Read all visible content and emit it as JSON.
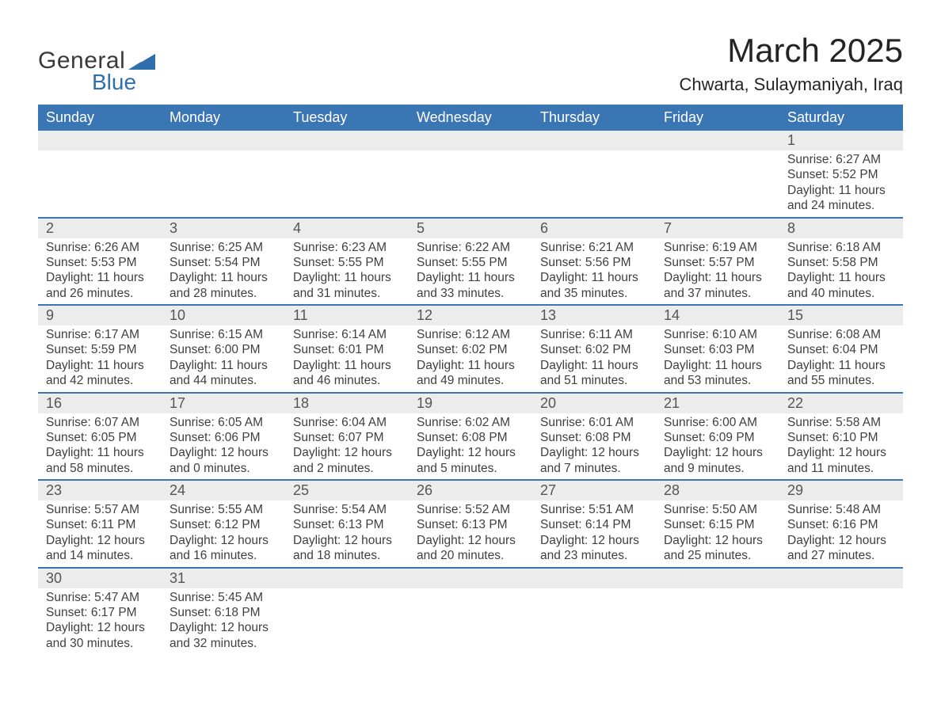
{
  "logo": {
    "text_general": "General",
    "text_blue": "Blue",
    "shape_color": "#2f6fae"
  },
  "header": {
    "month_title": "March 2025",
    "location": "Chwarta, Sulaymaniyah, Iraq"
  },
  "colors": {
    "header_bg": "#3b76b4",
    "header_text": "#ffffff",
    "daynum_bg": "#ececec",
    "border": "#3b76b4",
    "body_text": "#3f3f3f",
    "title_text": "#242424"
  },
  "day_headers": [
    "Sunday",
    "Monday",
    "Tuesday",
    "Wednesday",
    "Thursday",
    "Friday",
    "Saturday"
  ],
  "weeks": [
    [
      null,
      null,
      null,
      null,
      null,
      null,
      {
        "n": "1",
        "sunrise": "Sunrise: 6:27 AM",
        "sunset": "Sunset: 5:52 PM",
        "dl1": "Daylight: 11 hours",
        "dl2": "and 24 minutes."
      }
    ],
    [
      {
        "n": "2",
        "sunrise": "Sunrise: 6:26 AM",
        "sunset": "Sunset: 5:53 PM",
        "dl1": "Daylight: 11 hours",
        "dl2": "and 26 minutes."
      },
      {
        "n": "3",
        "sunrise": "Sunrise: 6:25 AM",
        "sunset": "Sunset: 5:54 PM",
        "dl1": "Daylight: 11 hours",
        "dl2": "and 28 minutes."
      },
      {
        "n": "4",
        "sunrise": "Sunrise: 6:23 AM",
        "sunset": "Sunset: 5:55 PM",
        "dl1": "Daylight: 11 hours",
        "dl2": "and 31 minutes."
      },
      {
        "n": "5",
        "sunrise": "Sunrise: 6:22 AM",
        "sunset": "Sunset: 5:55 PM",
        "dl1": "Daylight: 11 hours",
        "dl2": "and 33 minutes."
      },
      {
        "n": "6",
        "sunrise": "Sunrise: 6:21 AM",
        "sunset": "Sunset: 5:56 PM",
        "dl1": "Daylight: 11 hours",
        "dl2": "and 35 minutes."
      },
      {
        "n": "7",
        "sunrise": "Sunrise: 6:19 AM",
        "sunset": "Sunset: 5:57 PM",
        "dl1": "Daylight: 11 hours",
        "dl2": "and 37 minutes."
      },
      {
        "n": "8",
        "sunrise": "Sunrise: 6:18 AM",
        "sunset": "Sunset: 5:58 PM",
        "dl1": "Daylight: 11 hours",
        "dl2": "and 40 minutes."
      }
    ],
    [
      {
        "n": "9",
        "sunrise": "Sunrise: 6:17 AM",
        "sunset": "Sunset: 5:59 PM",
        "dl1": "Daylight: 11 hours",
        "dl2": "and 42 minutes."
      },
      {
        "n": "10",
        "sunrise": "Sunrise: 6:15 AM",
        "sunset": "Sunset: 6:00 PM",
        "dl1": "Daylight: 11 hours",
        "dl2": "and 44 minutes."
      },
      {
        "n": "11",
        "sunrise": "Sunrise: 6:14 AM",
        "sunset": "Sunset: 6:01 PM",
        "dl1": "Daylight: 11 hours",
        "dl2": "and 46 minutes."
      },
      {
        "n": "12",
        "sunrise": "Sunrise: 6:12 AM",
        "sunset": "Sunset: 6:02 PM",
        "dl1": "Daylight: 11 hours",
        "dl2": "and 49 minutes."
      },
      {
        "n": "13",
        "sunrise": "Sunrise: 6:11 AM",
        "sunset": "Sunset: 6:02 PM",
        "dl1": "Daylight: 11 hours",
        "dl2": "and 51 minutes."
      },
      {
        "n": "14",
        "sunrise": "Sunrise: 6:10 AM",
        "sunset": "Sunset: 6:03 PM",
        "dl1": "Daylight: 11 hours",
        "dl2": "and 53 minutes."
      },
      {
        "n": "15",
        "sunrise": "Sunrise: 6:08 AM",
        "sunset": "Sunset: 6:04 PM",
        "dl1": "Daylight: 11 hours",
        "dl2": "and 55 minutes."
      }
    ],
    [
      {
        "n": "16",
        "sunrise": "Sunrise: 6:07 AM",
        "sunset": "Sunset: 6:05 PM",
        "dl1": "Daylight: 11 hours",
        "dl2": "and 58 minutes."
      },
      {
        "n": "17",
        "sunrise": "Sunrise: 6:05 AM",
        "sunset": "Sunset: 6:06 PM",
        "dl1": "Daylight: 12 hours",
        "dl2": "and 0 minutes."
      },
      {
        "n": "18",
        "sunrise": "Sunrise: 6:04 AM",
        "sunset": "Sunset: 6:07 PM",
        "dl1": "Daylight: 12 hours",
        "dl2": "and 2 minutes."
      },
      {
        "n": "19",
        "sunrise": "Sunrise: 6:02 AM",
        "sunset": "Sunset: 6:08 PM",
        "dl1": "Daylight: 12 hours",
        "dl2": "and 5 minutes."
      },
      {
        "n": "20",
        "sunrise": "Sunrise: 6:01 AM",
        "sunset": "Sunset: 6:08 PM",
        "dl1": "Daylight: 12 hours",
        "dl2": "and 7 minutes."
      },
      {
        "n": "21",
        "sunrise": "Sunrise: 6:00 AM",
        "sunset": "Sunset: 6:09 PM",
        "dl1": "Daylight: 12 hours",
        "dl2": "and 9 minutes."
      },
      {
        "n": "22",
        "sunrise": "Sunrise: 5:58 AM",
        "sunset": "Sunset: 6:10 PM",
        "dl1": "Daylight: 12 hours",
        "dl2": "and 11 minutes."
      }
    ],
    [
      {
        "n": "23",
        "sunrise": "Sunrise: 5:57 AM",
        "sunset": "Sunset: 6:11 PM",
        "dl1": "Daylight: 12 hours",
        "dl2": "and 14 minutes."
      },
      {
        "n": "24",
        "sunrise": "Sunrise: 5:55 AM",
        "sunset": "Sunset: 6:12 PM",
        "dl1": "Daylight: 12 hours",
        "dl2": "and 16 minutes."
      },
      {
        "n": "25",
        "sunrise": "Sunrise: 5:54 AM",
        "sunset": "Sunset: 6:13 PM",
        "dl1": "Daylight: 12 hours",
        "dl2": "and 18 minutes."
      },
      {
        "n": "26",
        "sunrise": "Sunrise: 5:52 AM",
        "sunset": "Sunset: 6:13 PM",
        "dl1": "Daylight: 12 hours",
        "dl2": "and 20 minutes."
      },
      {
        "n": "27",
        "sunrise": "Sunrise: 5:51 AM",
        "sunset": "Sunset: 6:14 PM",
        "dl1": "Daylight: 12 hours",
        "dl2": "and 23 minutes."
      },
      {
        "n": "28",
        "sunrise": "Sunrise: 5:50 AM",
        "sunset": "Sunset: 6:15 PM",
        "dl1": "Daylight: 12 hours",
        "dl2": "and 25 minutes."
      },
      {
        "n": "29",
        "sunrise": "Sunrise: 5:48 AM",
        "sunset": "Sunset: 6:16 PM",
        "dl1": "Daylight: 12 hours",
        "dl2": "and 27 minutes."
      }
    ],
    [
      {
        "n": "30",
        "sunrise": "Sunrise: 5:47 AM",
        "sunset": "Sunset: 6:17 PM",
        "dl1": "Daylight: 12 hours",
        "dl2": "and 30 minutes."
      },
      {
        "n": "31",
        "sunrise": "Sunrise: 5:45 AM",
        "sunset": "Sunset: 6:18 PM",
        "dl1": "Daylight: 12 hours",
        "dl2": "and 32 minutes."
      },
      null,
      null,
      null,
      null,
      null
    ]
  ]
}
